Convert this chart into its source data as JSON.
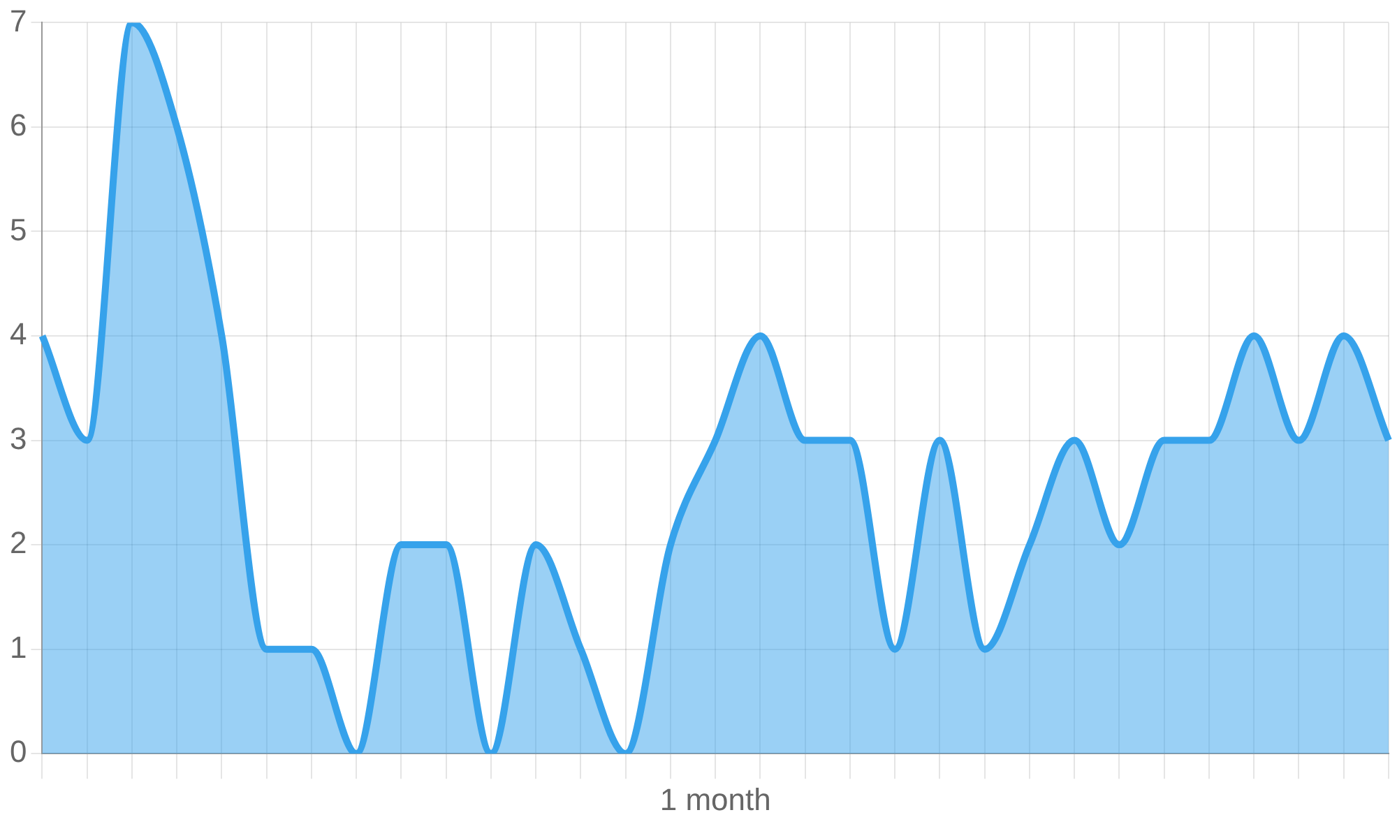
{
  "chart_data": {
    "type": "area",
    "categories": [
      null,
      null,
      null,
      null,
      null,
      null,
      null,
      null,
      null,
      null,
      null,
      null,
      null,
      null,
      null,
      "1 month",
      null,
      null,
      null,
      null,
      null,
      null,
      null,
      null,
      null,
      null,
      null,
      null,
      null,
      null,
      null
    ],
    "series": [
      {
        "color": "#36a2eb",
        "values": [
          4,
          3,
          7,
          6,
          4,
          1,
          1,
          0,
          2,
          2,
          0,
          2,
          1,
          0,
          2,
          3,
          4,
          3,
          3,
          1,
          3,
          1,
          2,
          3,
          2,
          3,
          3,
          4,
          3,
          4,
          3
        ]
      }
    ],
    "ylim": [
      0,
      7
    ],
    "yticks": [
      0,
      1,
      2,
      3,
      4,
      5,
      6,
      7
    ],
    "grid": true,
    "legend": false,
    "marker": "none",
    "line_style": "solid"
  }
}
